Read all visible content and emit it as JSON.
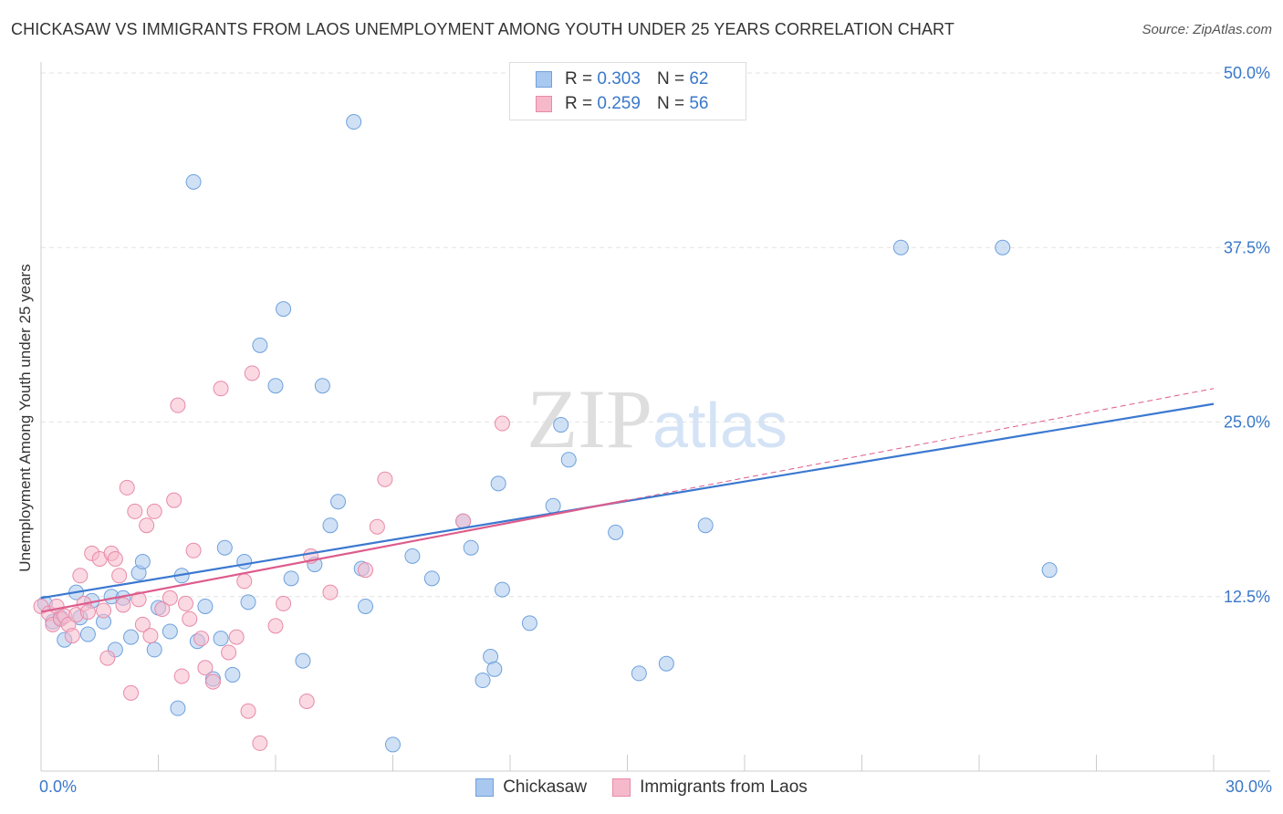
{
  "chart_data": {
    "type": "scatter",
    "title": "CHICKASAW VS IMMIGRANTS FROM LAOS UNEMPLOYMENT AMONG YOUTH UNDER 25 YEARS CORRELATION CHART",
    "source": "Source: ZipAtlas.com",
    "xlabel": "",
    "ylabel": "Unemployment Among Youth under 25 years",
    "xlim": [
      0,
      30
    ],
    "ylim": [
      0,
      50
    ],
    "x_tick_labels": {
      "min": "0.0%",
      "max": "30.0%"
    },
    "y_ticks": [
      {
        "value": 12.5,
        "label": "12.5%"
      },
      {
        "value": 25.0,
        "label": "25.0%"
      },
      {
        "value": 37.5,
        "label": "37.5%"
      },
      {
        "value": 50.0,
        "label": "50.0%"
      }
    ],
    "grid": true,
    "watermark": "ZIPatlas",
    "legend": {
      "r_label": "R =",
      "n_label": "N =",
      "entries": [
        {
          "name": "Chickasaw",
          "r": "0.303",
          "n": "62"
        },
        {
          "name": "Immigrants from Laos",
          "r": "0.259",
          "n": "56"
        }
      ]
    },
    "series": [
      {
        "name": "Chickasaw",
        "color": "#a9c8ef",
        "stroke": "#6fa1dc",
        "trend": {
          "color": "#3b78d0",
          "x": [
            0,
            30
          ],
          "y": [
            12.4,
            26.3
          ]
        },
        "points": [
          [
            0.1,
            12.0
          ],
          [
            0.3,
            10.7
          ],
          [
            0.5,
            11.0
          ],
          [
            0.6,
            9.4
          ],
          [
            0.9,
            12.8
          ],
          [
            1.0,
            11.0
          ],
          [
            1.2,
            9.8
          ],
          [
            1.3,
            12.2
          ],
          [
            1.6,
            10.7
          ],
          [
            1.8,
            12.5
          ],
          [
            1.9,
            8.7
          ],
          [
            2.1,
            12.4
          ],
          [
            2.3,
            9.6
          ],
          [
            2.5,
            14.2
          ],
          [
            2.6,
            15.0
          ],
          [
            2.9,
            8.7
          ],
          [
            3.0,
            11.7
          ],
          [
            3.3,
            10.0
          ],
          [
            3.5,
            4.5
          ],
          [
            3.6,
            14.0
          ],
          [
            3.9,
            42.2
          ],
          [
            4.0,
            9.3
          ],
          [
            4.2,
            11.8
          ],
          [
            4.4,
            6.6
          ],
          [
            4.6,
            9.5
          ],
          [
            4.7,
            16.0
          ],
          [
            4.9,
            6.9
          ],
          [
            5.2,
            15.0
          ],
          [
            5.3,
            12.1
          ],
          [
            5.6,
            30.5
          ],
          [
            6.0,
            27.6
          ],
          [
            6.2,
            33.1
          ],
          [
            6.4,
            13.8
          ],
          [
            6.7,
            7.9
          ],
          [
            7.0,
            14.8
          ],
          [
            7.2,
            27.6
          ],
          [
            7.4,
            17.6
          ],
          [
            7.6,
            19.3
          ],
          [
            8.0,
            46.5
          ],
          [
            8.2,
            14.5
          ],
          [
            8.3,
            11.8
          ],
          [
            9.0,
            1.9
          ],
          [
            9.5,
            15.4
          ],
          [
            10.0,
            13.8
          ],
          [
            10.8,
            17.9
          ],
          [
            11.0,
            16.0
          ],
          [
            11.3,
            6.5
          ],
          [
            11.5,
            8.2
          ],
          [
            11.6,
            7.3
          ],
          [
            11.7,
            20.6
          ],
          [
            11.8,
            13.0
          ],
          [
            12.5,
            10.6
          ],
          [
            13.1,
            19.0
          ],
          [
            13.3,
            24.8
          ],
          [
            13.5,
            22.3
          ],
          [
            14.7,
            17.1
          ],
          [
            15.3,
            7.0
          ],
          [
            16.0,
            7.7
          ],
          [
            17.0,
            17.6
          ],
          [
            22.0,
            37.5
          ],
          [
            24.6,
            37.5
          ],
          [
            25.8,
            14.4
          ]
        ]
      },
      {
        "name": "Immigrants from Laos",
        "color": "#f6b9cc",
        "stroke": "#e88aa8",
        "trend": {
          "color": "#dd5c8c",
          "x": [
            0,
            15
          ],
          "y": [
            11.4,
            19.4
          ]
        },
        "trend_extension": {
          "x": [
            15,
            30
          ],
          "y": [
            19.4,
            27.4
          ]
        },
        "points": [
          [
            0.0,
            11.8
          ],
          [
            0.2,
            11.3
          ],
          [
            0.3,
            10.5
          ],
          [
            0.4,
            11.8
          ],
          [
            0.5,
            10.9
          ],
          [
            0.6,
            11.1
          ],
          [
            0.7,
            10.5
          ],
          [
            0.8,
            9.7
          ],
          [
            0.9,
            11.2
          ],
          [
            1.0,
            14.0
          ],
          [
            1.1,
            12.0
          ],
          [
            1.2,
            11.4
          ],
          [
            1.3,
            15.6
          ],
          [
            1.5,
            15.2
          ],
          [
            1.6,
            11.5
          ],
          [
            1.7,
            8.1
          ],
          [
            1.8,
            15.6
          ],
          [
            1.9,
            15.2
          ],
          [
            2.0,
            14.0
          ],
          [
            2.1,
            11.9
          ],
          [
            2.2,
            20.3
          ],
          [
            2.3,
            5.6
          ],
          [
            2.4,
            18.6
          ],
          [
            2.5,
            12.3
          ],
          [
            2.6,
            10.5
          ],
          [
            2.7,
            17.6
          ],
          [
            2.8,
            9.7
          ],
          [
            2.9,
            18.6
          ],
          [
            3.1,
            11.6
          ],
          [
            3.3,
            12.4
          ],
          [
            3.4,
            19.4
          ],
          [
            3.5,
            26.2
          ],
          [
            3.6,
            6.8
          ],
          [
            3.7,
            12.0
          ],
          [
            3.8,
            10.9
          ],
          [
            3.9,
            15.8
          ],
          [
            4.1,
            9.5
          ],
          [
            4.2,
            7.4
          ],
          [
            4.4,
            6.4
          ],
          [
            4.6,
            27.4
          ],
          [
            4.8,
            8.5
          ],
          [
            5.0,
            9.6
          ],
          [
            5.2,
            13.6
          ],
          [
            5.3,
            4.3
          ],
          [
            5.4,
            28.5
          ],
          [
            5.6,
            2.0
          ],
          [
            6.0,
            10.4
          ],
          [
            6.2,
            12.0
          ],
          [
            6.8,
            5.0
          ],
          [
            6.9,
            15.4
          ],
          [
            7.4,
            12.8
          ],
          [
            8.3,
            14.4
          ],
          [
            8.6,
            17.5
          ],
          [
            8.8,
            20.9
          ],
          [
            10.8,
            17.9
          ],
          [
            11.8,
            24.9
          ]
        ]
      }
    ]
  }
}
